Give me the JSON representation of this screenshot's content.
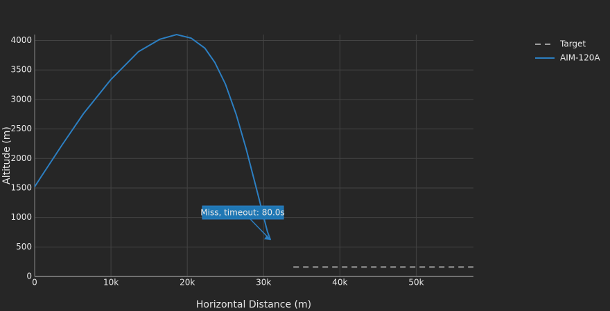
{
  "chart_data": {
    "type": "line",
    "x_label": "Horizontal Distance (m)",
    "y_label": "Altitude (m)",
    "xlim": [
      0,
      57500
    ],
    "ylim": [
      0,
      4100
    ],
    "xticks": [
      {
        "value": 0,
        "label": "0"
      },
      {
        "value": 10000,
        "label": "10k"
      },
      {
        "value": 20000,
        "label": "20k"
      },
      {
        "value": 30000,
        "label": "30k"
      },
      {
        "value": 40000,
        "label": "40k"
      },
      {
        "value": 50000,
        "label": "50k"
      }
    ],
    "yticks": [
      0,
      500,
      1000,
      1500,
      2000,
      2500,
      3000,
      3500,
      4000
    ],
    "grid": true,
    "legend": "top-right",
    "series": [
      {
        "name": "Target",
        "color": "#9e9e9e",
        "dash": true,
        "x": [
          33900,
          57500
        ],
        "values": [
          160,
          160
        ]
      },
      {
        "name": "AIM-120A",
        "color": "#2c7fc2",
        "x": [
          0,
          900,
          3600,
          6400,
          10000,
          13600,
          16400,
          18600,
          20500,
          22300,
          23600,
          25000,
          26400,
          27700,
          29100,
          30500,
          30900
        ],
        "values": [
          1520,
          1700,
          2230,
          2760,
          3340,
          3810,
          4020,
          4100,
          4040,
          3870,
          3630,
          3260,
          2750,
          2170,
          1470,
          760,
          620
        ]
      }
    ],
    "annotation": {
      "text": "Miss, timeout: 80.0s",
      "x": 30900,
      "y": 620
    }
  }
}
